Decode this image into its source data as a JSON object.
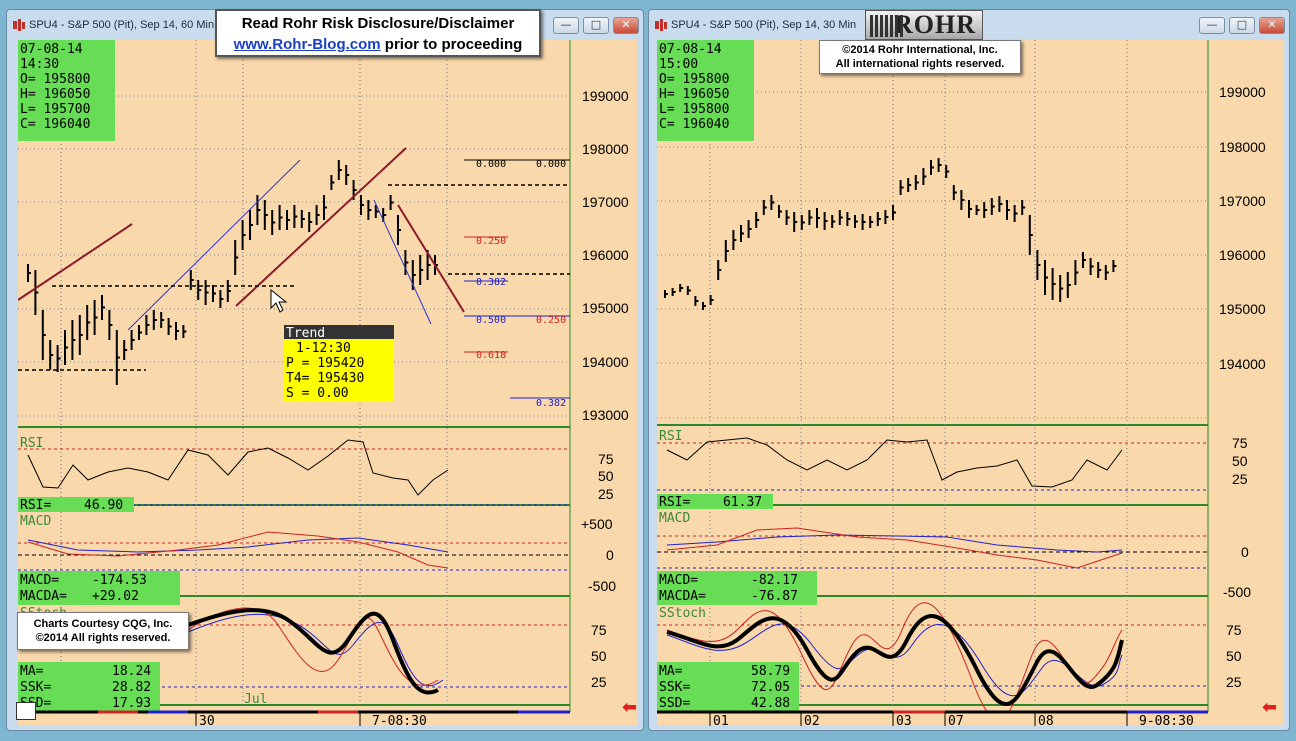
{
  "left_window": {
    "title": "SPU4 - S&P 500 (Pit), Sep 14, 60 Min",
    "ohlc": {
      "date": "07-08-14",
      "time": "14:30",
      "o": "O=   195800",
      "h": "H=   196050",
      "l": "L=   195700",
      "c": "C=   196040"
    },
    "price_axis": [
      "199000",
      "198000",
      "197000",
      "196000",
      "195000",
      "194000",
      "193000"
    ],
    "fib_labels": [
      "0.000",
      "0.000",
      "0.250",
      "0.382",
      "0.500",
      "0.250",
      "0.618",
      "0.382"
    ],
    "trend_box": {
      "title": "Trend",
      "time": "1-12:30",
      "p": "P =   195420",
      "t4": "T4=   195430",
      "s": "S =     0.00"
    },
    "rsi": {
      "title": "RSI",
      "readout_label": "RSI=",
      "readout_value": "46.90",
      "axis": [
        "75",
        "50",
        "25"
      ]
    },
    "macd": {
      "title": "MACD",
      "macd_label": "MACD=",
      "macd_value": "-174.53",
      "macda_label": "MACDA=",
      "macda_value": "+29.02",
      "axis": [
        "+500",
        "0",
        "-500"
      ]
    },
    "sstoch": {
      "title": "SStoch",
      "ma_label": "MA=",
      "ma_value": "18.24",
      "ssk_label": "SSK=",
      "ssk_value": "28.82",
      "ssd_label": "SSD=",
      "ssd_value": "17.93",
      "axis": [
        "75",
        "50",
        "25"
      ]
    },
    "x_axis": [
      "30",
      "Jul",
      "7-08:30"
    ]
  },
  "right_window": {
    "title": "SPU4 - S&P 500 (Pit), Sep 14, 30 Min",
    "ohlc": {
      "date": "07-08-14",
      "time": "15:00",
      "o": "O=   195800",
      "h": "H=   196050",
      "l": "L=   195800",
      "c": "C=   196040"
    },
    "price_axis": [
      "199000",
      "198000",
      "197000",
      "196000",
      "195000",
      "194000"
    ],
    "rsi": {
      "title": "RSI",
      "readout_label": "RSI=",
      "readout_value": "61.37",
      "axis": [
        "75",
        "50",
        "25"
      ]
    },
    "macd": {
      "title": "MACD",
      "macd_label": "MACD=",
      "macd_value": "-82.17",
      "macda_label": "MACDA=",
      "macda_value": "-76.87",
      "axis": [
        "0",
        "-500"
      ]
    },
    "sstoch": {
      "title": "SStoch",
      "ma_label": "MA=",
      "ma_value": "58.79",
      "ssk_label": "SSK=",
      "ssk_value": "72.05",
      "ssd_label": "SSD=",
      "ssd_value": "42.88",
      "axis": [
        "75",
        "50",
        "25"
      ]
    },
    "x_axis": [
      "01",
      "02",
      "03",
      "07",
      "08",
      "9-08:30"
    ]
  },
  "banner": {
    "line1": "Read Rohr Risk Disclosure/Disclaimer",
    "link": "www.Rohr-Blog.com",
    "line2_suffix": " prior to proceeding"
  },
  "copyright": {
    "line1": "©2014  Rohr International, Inc.",
    "line2": "All international rights reserved."
  },
  "cqg_credit": {
    "line1": "Charts Courtesy CQG, Inc.",
    "line2": "©2014 All rights reserved."
  },
  "logo_text": "ROHR",
  "window_buttons": {
    "minimize": "—",
    "maximize": "□",
    "close": "✕"
  },
  "colors": {
    "chart_bg": "#f9d8ab",
    "readout_bg": "#66dd55",
    "trend_bg": "#ffff00",
    "rsi_ma_red": "#cc2222",
    "blue": "#2222cc"
  }
}
